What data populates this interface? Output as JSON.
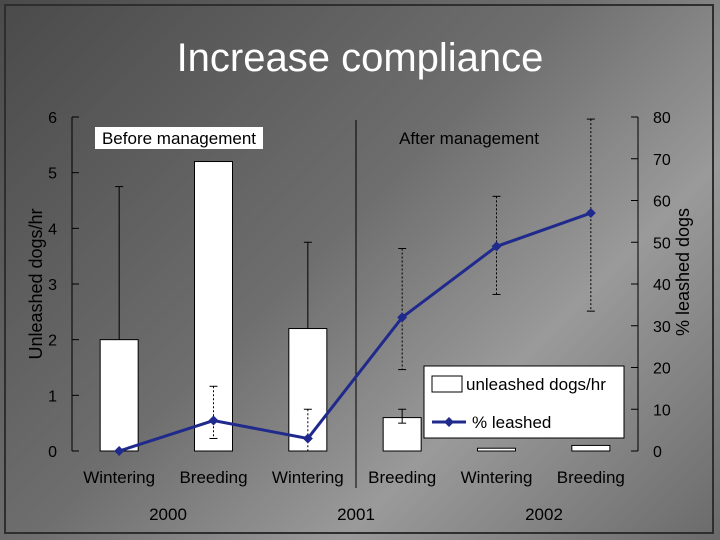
{
  "slide": {
    "title": "Increase compliance"
  },
  "chart_data": {
    "type": "bar",
    "xlabel": "",
    "ylabel": "Unleashed dogs/hr",
    "y2label": "% leashed dogs",
    "ylim": [
      0,
      6
    ],
    "y2lim": [
      0,
      80
    ],
    "yticks": [
      0,
      1,
      2,
      3,
      4,
      5,
      6
    ],
    "y2ticks": [
      0,
      10,
      20,
      30,
      40,
      50,
      60,
      70,
      80
    ],
    "categories": [
      "Wintering",
      "Breeding",
      "Wintering",
      "Breeding",
      "Wintering",
      "Breeding"
    ],
    "years": [
      "2000",
      "2001",
      "2002"
    ],
    "period_labels": {
      "before": "Before management",
      "after": "After management"
    },
    "series": [
      {
        "name": "unleashed dogs/hr",
        "type": "bar",
        "axis": "left",
        "values": [
          2.0,
          5.2,
          2.2,
          0.6,
          0.05,
          0.1
        ],
        "error_upper": [
          4.75,
          5.2,
          3.75,
          0.75,
          0.05,
          0.1
        ],
        "error_lower": [
          2.0,
          5.2,
          2.2,
          0.5,
          0.05,
          0.1
        ],
        "color": "#ffffff"
      },
      {
        "name": "% leashed",
        "type": "line",
        "axis": "right",
        "values": [
          0,
          7.3,
          3,
          32,
          49,
          57
        ],
        "error_upper": [
          0,
          15.5,
          10,
          48.5,
          61,
          79.5
        ],
        "error_lower": [
          0,
          3,
          0,
          19.5,
          37.5,
          33.5
        ],
        "color": "#1f2a8c"
      }
    ],
    "legend_position": "bottom-right",
    "grid": false
  }
}
